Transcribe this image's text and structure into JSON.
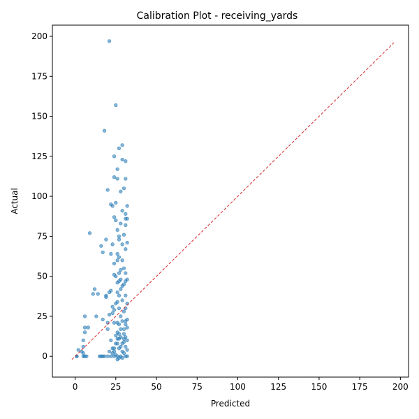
{
  "chart_data": {
    "type": "scatter",
    "title": "Calibration Plot - receiving_yards",
    "xlabel": "Predicted",
    "ylabel": "Actual",
    "xlim": [
      -14,
      205
    ],
    "ylim": [
      -13,
      207
    ],
    "xticks": [
      0,
      25,
      50,
      75,
      100,
      125,
      150,
      175,
      200
    ],
    "yticks": [
      0,
      25,
      50,
      75,
      100,
      125,
      150,
      175,
      200
    ],
    "grid": false,
    "legend": "none",
    "point_color": "#1f77b4",
    "reference_line": {
      "color": "#d62728",
      "style": "dashed",
      "from": [
        -2,
        -2
      ],
      "to": [
        196,
        196
      ]
    },
    "points": [
      [
        1,
        0
      ],
      [
        2,
        4
      ],
      [
        1,
        0
      ],
      [
        4,
        3
      ],
      [
        5,
        0
      ],
      [
        5,
        2
      ],
      [
        5,
        6
      ],
      [
        5,
        10
      ],
      [
        6,
        15
      ],
      [
        6,
        18
      ],
      [
        6,
        25
      ],
      [
        7,
        0
      ],
      [
        8,
        18
      ],
      [
        6,
        0
      ],
      [
        9,
        77
      ],
      [
        11,
        39
      ],
      [
        12,
        42
      ],
      [
        13,
        25
      ],
      [
        14,
        39
      ],
      [
        15,
        0
      ],
      [
        16,
        0
      ],
      [
        16,
        69
      ],
      [
        17,
        65
      ],
      [
        17,
        23
      ],
      [
        17,
        0
      ],
      [
        18,
        0
      ],
      [
        18,
        141
      ],
      [
        19,
        37
      ],
      [
        19,
        38
      ],
      [
        19,
        73
      ],
      [
        20,
        21
      ],
      [
        20,
        104
      ],
      [
        20,
        0
      ],
      [
        21,
        197
      ],
      [
        21,
        40
      ],
      [
        22,
        41
      ],
      [
        22,
        10
      ],
      [
        22,
        0
      ],
      [
        22,
        95
      ],
      [
        22,
        64
      ],
      [
        23,
        94
      ],
      [
        23,
        70
      ],
      [
        23,
        31
      ],
      [
        23,
        27
      ],
      [
        23,
        5
      ],
      [
        24,
        125
      ],
      [
        24,
        112
      ],
      [
        24,
        87
      ],
      [
        24,
        58
      ],
      [
        24,
        51
      ],
      [
        24,
        29
      ],
      [
        24,
        21
      ],
      [
        24,
        3
      ],
      [
        24,
        0
      ],
      [
        25,
        157
      ],
      [
        25,
        96
      ],
      [
        25,
        85
      ],
      [
        25,
        50
      ],
      [
        25,
        33
      ],
      [
        25,
        13
      ],
      [
        26,
        117
      ],
      [
        26,
        111
      ],
      [
        26,
        79
      ],
      [
        26,
        64
      ],
      [
        26,
        60
      ],
      [
        26,
        46
      ],
      [
        26,
        40
      ],
      [
        26,
        34
      ],
      [
        26,
        21
      ],
      [
        26,
        15
      ],
      [
        26,
        8
      ],
      [
        26,
        0
      ],
      [
        27,
        130
      ],
      [
        27,
        75
      ],
      [
        27,
        73
      ],
      [
        27,
        62
      ],
      [
        27,
        52
      ],
      [
        27,
        47
      ],
      [
        27,
        38
      ],
      [
        27,
        30
      ],
      [
        27,
        20
      ],
      [
        27,
        11
      ],
      [
        27,
        5
      ],
      [
        28,
        103
      ],
      [
        28,
        83
      ],
      [
        28,
        54
      ],
      [
        28,
        48
      ],
      [
        28,
        42
      ],
      [
        28,
        25
      ],
      [
        28,
        12
      ],
      [
        28,
        0
      ],
      [
        29,
        132
      ],
      [
        29,
        123
      ],
      [
        29,
        91
      ],
      [
        29,
        70
      ],
      [
        29,
        60
      ],
      [
        29,
        44
      ],
      [
        29,
        35
      ],
      [
        29,
        22
      ],
      [
        29,
        8
      ],
      [
        30,
        105
      ],
      [
        30,
        76
      ],
      [
        30,
        55
      ],
      [
        30,
        45
      ],
      [
        30,
        28
      ],
      [
        30,
        14
      ],
      [
        30,
        2
      ],
      [
        31,
        122
      ],
      [
        31,
        111
      ],
      [
        31,
        89
      ],
      [
        31,
        86
      ],
      [
        31,
        82
      ],
      [
        31,
        67
      ],
      [
        31,
        52
      ],
      [
        31,
        47
      ],
      [
        31,
        38
      ],
      [
        31,
        30
      ],
      [
        31,
        22
      ],
      [
        31,
        12
      ],
      [
        31,
        6
      ],
      [
        31,
        0
      ],
      [
        32,
        94
      ],
      [
        32,
        86
      ],
      [
        32,
        71
      ],
      [
        32,
        48
      ],
      [
        32,
        33
      ],
      [
        32,
        23
      ],
      [
        32,
        10
      ],
      [
        32,
        4
      ],
      [
        32,
        0
      ],
      [
        30,
        17
      ],
      [
        28,
        17
      ],
      [
        26,
        -2
      ],
      [
        27,
        -1
      ],
      [
        29,
        -1
      ],
      [
        25,
        1
      ],
      [
        23,
        2
      ],
      [
        21,
        3
      ],
      [
        30,
        9
      ],
      [
        31,
        20
      ],
      [
        32,
        18
      ],
      [
        30,
        11
      ],
      [
        29,
        3
      ],
      [
        28,
        6
      ],
      [
        26,
        11
      ],
      [
        27,
        14
      ],
      [
        25,
        8
      ],
      [
        24,
        5
      ],
      [
        20,
        17
      ],
      [
        21,
        26
      ]
    ]
  }
}
